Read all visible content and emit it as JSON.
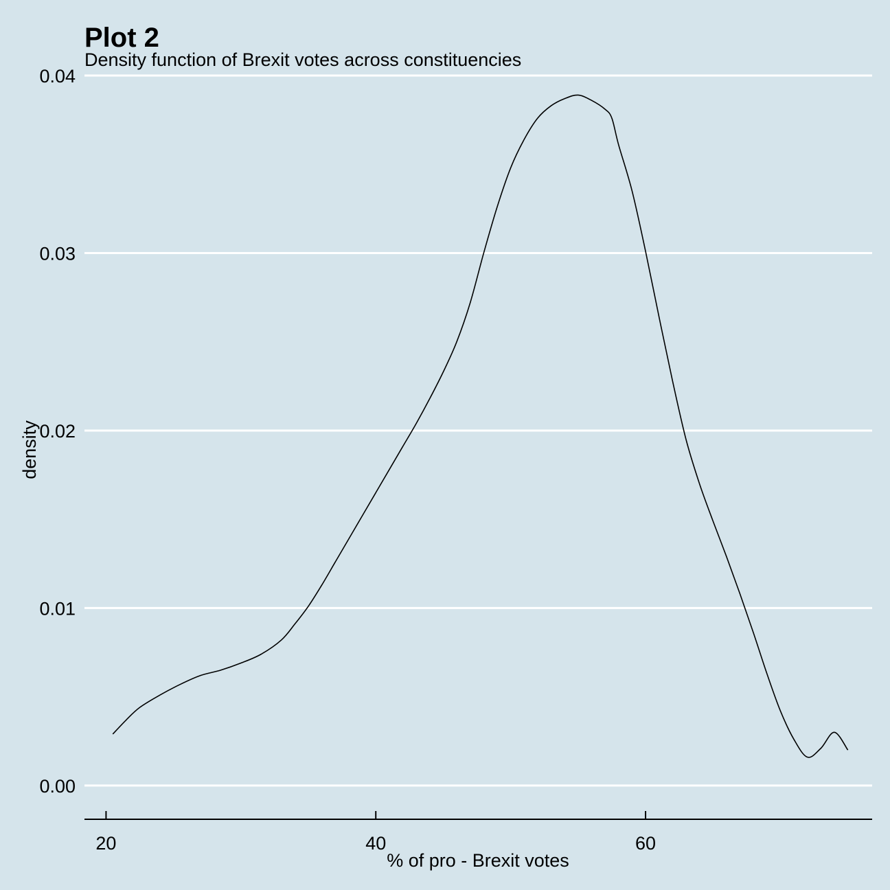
{
  "chart_data": {
    "type": "area",
    "title": "Plot 2",
    "subtitle": "Density function of Brexit votes across constituencies",
    "xlabel": "% of pro - Brexit votes",
    "ylabel": "density",
    "xlim": [
      18.4,
      76.8
    ],
    "ylim": [
      -0.0019,
      0.04
    ],
    "x_ticks": [
      20,
      40,
      60
    ],
    "x_tick_labels": [
      "20",
      "40",
      "60"
    ],
    "y_ticks": [
      0.0,
      0.01,
      0.02,
      0.03,
      0.04
    ],
    "y_tick_labels": [
      "0.00",
      "0.01",
      "0.02",
      "0.03",
      "0.04"
    ],
    "grid": "horizontal",
    "series": [
      {
        "x": [
          20.5,
          21.5,
          22.5,
          24.0,
          25.5,
          27.0,
          28.5,
          30.0,
          31.5,
          33.0,
          34.0,
          35.0,
          36.0,
          37.0,
          38.0,
          39.0,
          40.0,
          41.0,
          42.0,
          43.0,
          44.0,
          45.0,
          46.0,
          47.0,
          48.0,
          49.0,
          50.0,
          51.0,
          52.0,
          53.0,
          54.0,
          55.0,
          56.0,
          57.0,
          57.5,
          58.0,
          59.0,
          60.0,
          61.0,
          62.0,
          63.0,
          64.0,
          65.0,
          66.0,
          67.0,
          68.0,
          69.0,
          70.0,
          71.0,
          72.0,
          73.0,
          74.0,
          75.0
        ],
        "y": [
          0.0029,
          0.0037,
          0.0044,
          0.0051,
          0.0057,
          0.0062,
          0.0065,
          0.0069,
          0.0074,
          0.0082,
          0.0091,
          0.0101,
          0.0113,
          0.0126,
          0.0139,
          0.0152,
          0.0165,
          0.0178,
          0.0191,
          0.0204,
          0.0218,
          0.0233,
          0.025,
          0.0272,
          0.03,
          0.0326,
          0.0348,
          0.0364,
          0.0376,
          0.0383,
          0.0387,
          0.0389,
          0.0386,
          0.0381,
          0.0376,
          0.0361,
          0.0335,
          0.0301,
          0.0264,
          0.0228,
          0.0195,
          0.017,
          0.0149,
          0.0129,
          0.0108,
          0.0086,
          0.0063,
          0.0042,
          0.0026,
          0.0016,
          0.0021,
          0.003,
          0.002
        ]
      }
    ]
  },
  "colors": {
    "background": "#d5e4eb",
    "gridline": "#ffffff",
    "line": "#000000",
    "axis": "#000000"
  }
}
